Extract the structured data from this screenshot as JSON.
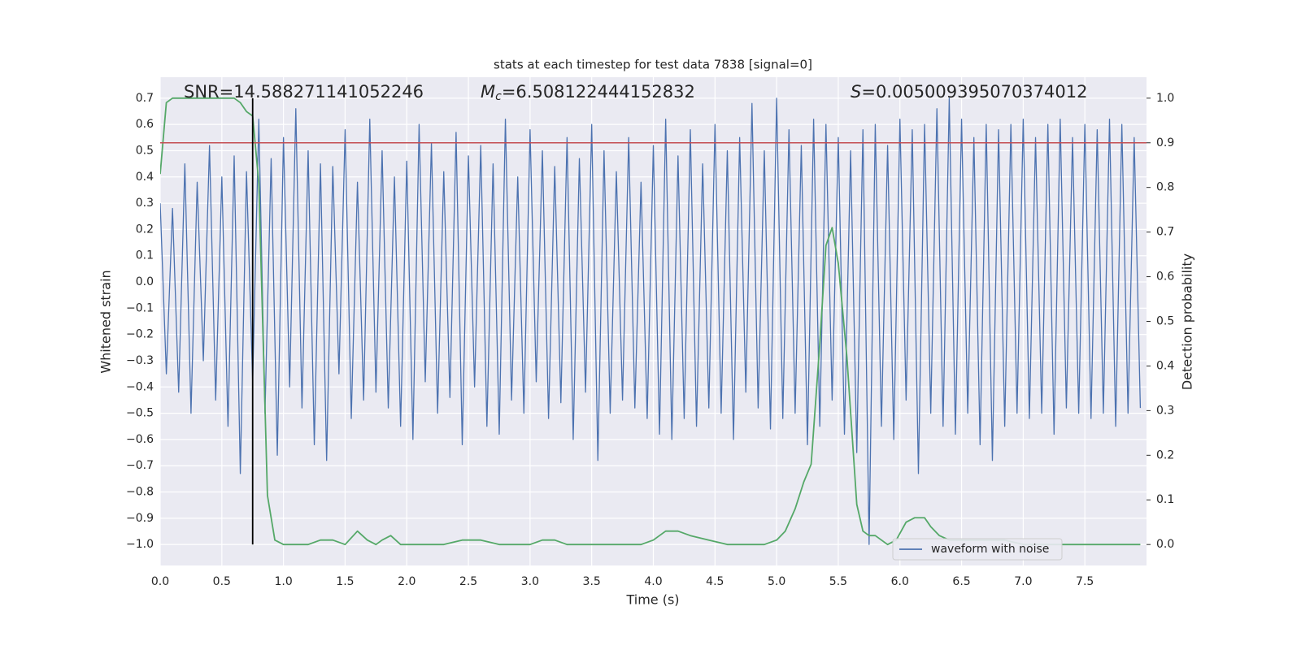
{
  "chart_data": {
    "type": "line",
    "title": "stats at each timestep for test data 7838 [signal=0]",
    "xlabel": "Time (s)",
    "ylabel": "Whitened strain",
    "y2label": "Detection probability",
    "annotations": [
      {
        "text": "SNR=14.588271141052246"
      },
      {
        "symbol": "M",
        "subscript": "c",
        "text": "=6.508122444152832"
      },
      {
        "symbol": "S",
        "text": "=0.005009395070374012"
      }
    ],
    "xlim": [
      0,
      8.0
    ],
    "ylim": [
      -1.08,
      0.78
    ],
    "y2lim": [
      -0.047,
      1.047
    ],
    "xticks": [
      {
        "value": 0,
        "label": "0.0"
      },
      0.5,
      {
        "value": 1,
        "label": "1.0"
      },
      1.5,
      {
        "value": 2,
        "label": "2.0"
      },
      2.5,
      {
        "value": 3,
        "label": "3.0"
      },
      3.5,
      {
        "value": 4,
        "label": "4.0"
      },
      4.5,
      {
        "value": 5,
        "label": "5.0"
      },
      5.5,
      {
        "value": 6,
        "label": "6.0"
      },
      6.5,
      {
        "value": 7,
        "label": "7.0"
      },
      7.5
    ],
    "yticks": [
      {
        "value": -1.0,
        "label": "−1.0"
      },
      {
        "value": -0.9,
        "label": "−0.9"
      },
      {
        "value": -0.8,
        "label": "−0.8"
      },
      {
        "value": -0.7,
        "label": "−0.7"
      },
      {
        "value": -0.6,
        "label": "−0.6"
      },
      {
        "value": -0.5,
        "label": "−0.5"
      },
      {
        "value": -0.4,
        "label": "−0.4"
      },
      {
        "value": -0.3,
        "label": "−0.3"
      },
      {
        "value": -0.2,
        "label": "−0.2"
      },
      {
        "value": -0.1,
        "label": "−0.1"
      },
      {
        "value": 0,
        "label": "0.0"
      },
      0.1,
      0.2,
      0.3,
      0.4,
      0.5,
      0.6,
      0.7
    ],
    "y2ticks": [
      {
        "value": 0,
        "label": "0.0"
      },
      0.1,
      0.2,
      0.3,
      0.4,
      0.5,
      0.6,
      0.7,
      0.8,
      0.9,
      {
        "value": 1,
        "label": "1.0"
      }
    ],
    "grid": true,
    "legend": "lower right",
    "series": [
      {
        "name": "waveform with noise",
        "color": "#4c72b0",
        "x": [
          0,
          0.05,
          0.1,
          0.15,
          0.2,
          0.25,
          0.3,
          0.35,
          0.4,
          0.45,
          0.5,
          0.55,
          0.6,
          0.65,
          0.7,
          0.75,
          0.8,
          0.85,
          0.9,
          0.95,
          1.0,
          1.05,
          1.1,
          1.15,
          1.2,
          1.25,
          1.3,
          1.35,
          1.4,
          1.45,
          1.5,
          1.55,
          1.6,
          1.65,
          1.7,
          1.75,
          1.8,
          1.85,
          1.9,
          1.95,
          2.0,
          2.05,
          2.1,
          2.15,
          2.2,
          2.25,
          2.3,
          2.35,
          2.4,
          2.45,
          2.5,
          2.55,
          2.6,
          2.65,
          2.7,
          2.75,
          2.8,
          2.85,
          2.9,
          2.95,
          3.0,
          3.05,
          3.1,
          3.15,
          3.2,
          3.25,
          3.3,
          3.35,
          3.4,
          3.45,
          3.5,
          3.55,
          3.6,
          3.65,
          3.7,
          3.75,
          3.8,
          3.85,
          3.9,
          3.95,
          4.0,
          4.05,
          4.1,
          4.15,
          4.2,
          4.25,
          4.3,
          4.35,
          4.4,
          4.45,
          4.5,
          4.55,
          4.6,
          4.65,
          4.7,
          4.75,
          4.8,
          4.85,
          4.9,
          4.95,
          5.0,
          5.05,
          5.1,
          5.15,
          5.2,
          5.25,
          5.3,
          5.35,
          5.4,
          5.45,
          5.5,
          5.55,
          5.6,
          5.65,
          5.7,
          5.75,
          5.8,
          5.85,
          5.9,
          5.95,
          6.0,
          6.05,
          6.1,
          6.15,
          6.2,
          6.25,
          6.3,
          6.35,
          6.4,
          6.45,
          6.5,
          6.55,
          6.6,
          6.65,
          6.7,
          6.75,
          6.8,
          6.85,
          6.9,
          6.95,
          7.0,
          7.05,
          7.1,
          7.15,
          7.2,
          7.25,
          7.3,
          7.35,
          7.4,
          7.45,
          7.5,
          7.55,
          7.6,
          7.65,
          7.7,
          7.75,
          7.8,
          7.85,
          7.9,
          7.95
        ],
        "values": [
          0.3,
          -0.35,
          0.28,
          -0.42,
          0.45,
          -0.5,
          0.38,
          -0.3,
          0.52,
          -0.45,
          0.4,
          -0.55,
          0.48,
          -0.73,
          0.42,
          -0.38,
          0.62,
          -0.5,
          0.47,
          -0.66,
          0.55,
          -0.4,
          0.66,
          -0.48,
          0.5,
          -0.62,
          0.45,
          -0.68,
          0.44,
          -0.35,
          0.58,
          -0.52,
          0.38,
          -0.45,
          0.62,
          -0.42,
          0.5,
          -0.48,
          0.4,
          -0.55,
          0.46,
          -0.6,
          0.6,
          -0.38,
          0.53,
          -0.5,
          0.42,
          -0.44,
          0.57,
          -0.62,
          0.48,
          -0.4,
          0.52,
          -0.55,
          0.45,
          -0.58,
          0.62,
          -0.45,
          0.4,
          -0.5,
          0.58,
          -0.38,
          0.5,
          -0.52,
          0.44,
          -0.46,
          0.55,
          -0.6,
          0.47,
          -0.42,
          0.6,
          -0.68,
          0.5,
          -0.5,
          0.42,
          -0.45,
          0.55,
          -0.48,
          0.38,
          -0.52,
          0.52,
          -0.58,
          0.62,
          -0.6,
          0.48,
          -0.52,
          0.58,
          -0.55,
          0.45,
          -0.48,
          0.6,
          -0.5,
          0.5,
          -0.6,
          0.55,
          -0.42,
          0.68,
          -0.48,
          0.5,
          -0.56,
          0.7,
          -0.52,
          0.58,
          -0.5,
          0.52,
          -0.62,
          0.62,
          -0.55,
          0.6,
          -0.45,
          0.55,
          -0.58,
          0.5,
          -0.65,
          0.58,
          -1.0,
          0.6,
          -0.55,
          0.52,
          -0.6,
          0.62,
          -0.45,
          0.58,
          -0.73,
          0.6,
          -0.5,
          0.66,
          -0.55,
          0.7,
          -0.58,
          0.62,
          -0.5,
          0.55,
          -0.62,
          0.6,
          -0.68,
          0.58,
          -0.55,
          0.6,
          -0.5,
          0.62,
          -0.52,
          0.55,
          -0.5,
          0.6,
          -0.58,
          0.62,
          -0.48,
          0.55,
          -0.5,
          0.6,
          -0.52,
          0.58,
          -0.5,
          0.62,
          -0.55,
          0.6,
          -0.5,
          0.55,
          -0.48
        ]
      },
      {
        "color": "#55a868",
        "axis": "y2",
        "x": [
          0,
          0.05,
          0.1,
          0.2,
          0.3,
          0.4,
          0.5,
          0.6,
          0.65,
          0.7,
          0.75,
          0.8,
          0.87,
          0.93,
          1.0,
          1.1,
          1.2,
          1.3,
          1.4,
          1.5,
          1.6,
          1.68,
          1.75,
          1.8,
          1.87,
          1.95,
          2.05,
          2.2,
          2.3,
          2.45,
          2.6,
          2.75,
          2.9,
          3.0,
          3.1,
          3.2,
          3.3,
          3.5,
          3.7,
          3.9,
          4.0,
          4.1,
          4.2,
          4.3,
          4.45,
          4.6,
          4.8,
          4.9,
          5.0,
          5.07,
          5.15,
          5.22,
          5.28,
          5.35,
          5.4,
          5.45,
          5.5,
          5.57,
          5.65,
          5.7,
          5.75,
          5.8,
          5.9,
          5.97,
          6.05,
          6.12,
          6.2,
          6.25,
          6.32,
          6.4,
          6.5,
          6.7,
          6.85,
          7.0,
          7.2,
          7.45,
          7.6,
          7.8,
          7.95
        ],
        "values": [
          0.83,
          0.99,
          1.0,
          1.0,
          1.0,
          1.0,
          1.0,
          1.0,
          0.99,
          0.97,
          0.96,
          0.81,
          0.11,
          0.01,
          0.0,
          0.0,
          0.0,
          0.01,
          0.01,
          0.0,
          0.03,
          0.01,
          0.0,
          0.01,
          0.02,
          0.0,
          0.0,
          0.0,
          0.0,
          0.01,
          0.01,
          0.0,
          0.0,
          0.0,
          0.01,
          0.01,
          0.0,
          0.0,
          0.0,
          0.0,
          0.01,
          0.03,
          0.03,
          0.02,
          0.01,
          0.0,
          0.0,
          0.0,
          0.01,
          0.03,
          0.08,
          0.14,
          0.18,
          0.45,
          0.67,
          0.71,
          0.63,
          0.42,
          0.09,
          0.03,
          0.02,
          0.02,
          0.0,
          0.01,
          0.05,
          0.06,
          0.06,
          0.04,
          0.02,
          0.01,
          0.01,
          0.01,
          0.01,
          0.0,
          0.0,
          0.0,
          0.0,
          0.0,
          0.0
        ]
      }
    ],
    "hlines": [
      {
        "value": 0.9,
        "axis": "y2",
        "color": "#c44e52"
      }
    ],
    "vlines": [
      {
        "value": 0.75,
        "ymin": -1.0,
        "ymax": 0.7,
        "color": "#000000"
      }
    ]
  }
}
